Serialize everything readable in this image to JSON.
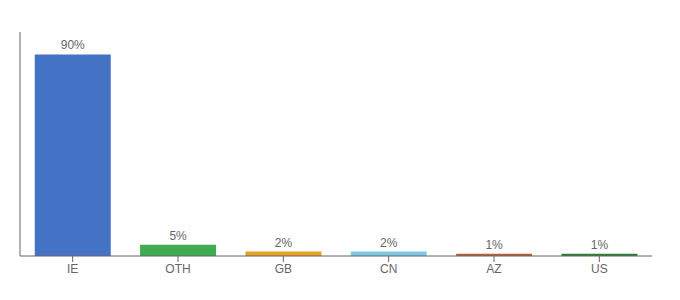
{
  "chart_data": {
    "type": "bar",
    "categories": [
      "IE",
      "OTH",
      "GB",
      "CN",
      "AZ",
      "US"
    ],
    "values": [
      90,
      5,
      2,
      2,
      1,
      1
    ],
    "value_labels": [
      "90%",
      "5%",
      "2%",
      "2%",
      "1%",
      "1%"
    ],
    "data_labels": true,
    "colors": [
      "#4472c4",
      "#3fac4f",
      "#e8a020",
      "#7ec8e8",
      "#b85c38",
      "#2e7d32"
    ],
    "ylim": [
      0,
      100
    ],
    "tick_labels": "x"
  }
}
